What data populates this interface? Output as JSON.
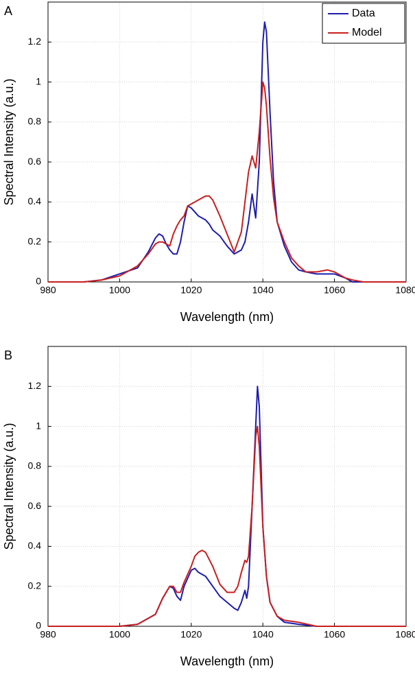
{
  "chart_data": [
    {
      "type": "line",
      "label": "A",
      "xlabel": "Wavelength (nm)",
      "ylabel": "Spectral Intensity (a.u.)",
      "x": [
        980,
        985,
        990,
        995,
        1000,
        1005,
        1008,
        1010,
        1011,
        1012,
        1013,
        1014,
        1015,
        1016,
        1017,
        1018,
        1019,
        1020,
        1022,
        1024,
        1025,
        1026,
        1028,
        1030,
        1032,
        1034,
        1035,
        1036,
        1037,
        1038,
        1039,
        1040,
        1040.5,
        1041,
        1042,
        1043,
        1044,
        1046,
        1048,
        1050,
        1052,
        1055,
        1058,
        1060,
        1063,
        1065,
        1068,
        1070,
        1080
      ],
      "series": [
        {
          "name": "Data",
          "color": "#1c1cb0",
          "values": [
            0,
            0,
            0,
            0.01,
            0.04,
            0.07,
            0.15,
            0.22,
            0.24,
            0.23,
            0.19,
            0.16,
            0.14,
            0.14,
            0.2,
            0.3,
            0.38,
            0.37,
            0.33,
            0.31,
            0.29,
            0.26,
            0.23,
            0.18,
            0.14,
            0.16,
            0.2,
            0.3,
            0.44,
            0.32,
            0.6,
            1.2,
            1.3,
            1.25,
            0.85,
            0.5,
            0.3,
            0.18,
            0.1,
            0.06,
            0.05,
            0.04,
            0.04,
            0.04,
            0.02,
            0,
            0,
            0,
            0
          ]
        },
        {
          "name": "Model",
          "color": "#c81e1e",
          "values": [
            0,
            0,
            0,
            0.01,
            0.03,
            0.08,
            0.14,
            0.19,
            0.2,
            0.2,
            0.19,
            0.18,
            0.24,
            0.28,
            0.31,
            0.33,
            0.38,
            0.39,
            0.41,
            0.43,
            0.43,
            0.41,
            0.33,
            0.24,
            0.15,
            0.25,
            0.4,
            0.55,
            0.63,
            0.57,
            0.75,
            1.0,
            0.97,
            0.88,
            0.62,
            0.42,
            0.3,
            0.2,
            0.12,
            0.08,
            0.05,
            0.05,
            0.06,
            0.05,
            0.02,
            0.01,
            0,
            0,
            0
          ]
        }
      ],
      "xlim": [
        980,
        1080
      ],
      "xticks": [
        980,
        1000,
        1020,
        1040,
        1060,
        1080
      ],
      "ylim": [
        0,
        1.4
      ],
      "yticks": [
        0,
        0.2,
        0.4,
        0.6,
        0.8,
        1,
        1.2
      ],
      "grid": true,
      "legend": "upper right"
    },
    {
      "type": "line",
      "label": "B",
      "xlabel": "Wavelength (nm)",
      "ylabel": "Spectral Intensity (a.u.)",
      "x": [
        980,
        990,
        1000,
        1005,
        1010,
        1012,
        1014,
        1015,
        1016,
        1017,
        1018,
        1020,
        1021,
        1022,
        1023,
        1024,
        1026,
        1028,
        1030,
        1032,
        1033,
        1034,
        1035,
        1035.5,
        1036,
        1037,
        1038,
        1038.5,
        1039,
        1040,
        1041,
        1042,
        1044,
        1046,
        1050,
        1055,
        1060,
        1080
      ],
      "series": [
        {
          "color": "#1c1cb0",
          "values": [
            0,
            0,
            0,
            0.01,
            0.06,
            0.14,
            0.2,
            0.19,
            0.15,
            0.13,
            0.2,
            0.28,
            0.29,
            0.27,
            0.26,
            0.25,
            0.2,
            0.15,
            0.12,
            0.09,
            0.08,
            0.12,
            0.18,
            0.14,
            0.2,
            0.6,
            1.0,
            1.2,
            1.1,
            0.5,
            0.25,
            0.12,
            0.05,
            0.02,
            0.01,
            0,
            0,
            0
          ]
        },
        {
          "color": "#c81e1e",
          "values": [
            0,
            0,
            0,
            0.01,
            0.06,
            0.14,
            0.2,
            0.2,
            0.17,
            0.17,
            0.22,
            0.3,
            0.35,
            0.37,
            0.38,
            0.37,
            0.3,
            0.21,
            0.17,
            0.17,
            0.2,
            0.27,
            0.33,
            0.32,
            0.35,
            0.6,
            0.95,
            1.0,
            0.9,
            0.5,
            0.25,
            0.12,
            0.05,
            0.03,
            0.02,
            0,
            0,
            0
          ]
        }
      ],
      "xlim": [
        980,
        1080
      ],
      "xticks": [
        980,
        1000,
        1020,
        1040,
        1060,
        1080
      ],
      "ylim": [
        0,
        1.4
      ],
      "yticks": [
        0,
        0.2,
        0.4,
        0.6,
        0.8,
        1,
        1.2
      ],
      "grid": true
    }
  ]
}
